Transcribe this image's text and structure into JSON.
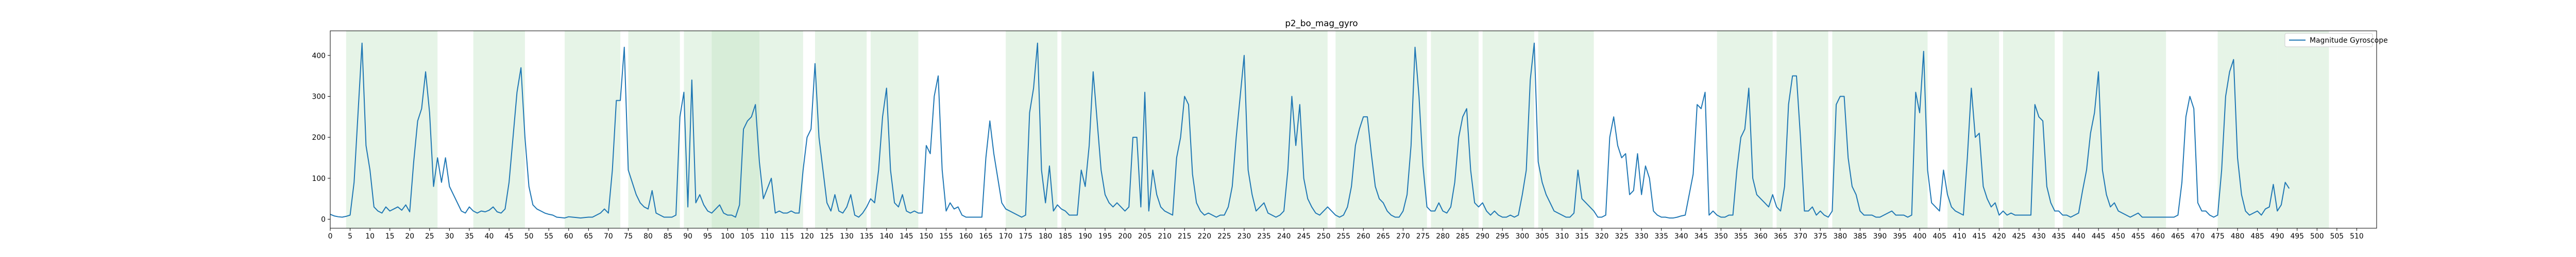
{
  "chart_data": {
    "type": "line",
    "title": "p2_bo_mag_gyro",
    "xlabel": "",
    "ylabel": "",
    "xlim": [
      0,
      515
    ],
    "ylim": [
      -22,
      460
    ],
    "x_ticks": [
      0,
      5,
      10,
      15,
      20,
      25,
      30,
      35,
      40,
      45,
      50,
      55,
      60,
      65,
      70,
      75,
      80,
      85,
      90,
      95,
      100,
      105,
      110,
      115,
      120,
      125,
      130,
      135,
      140,
      145,
      150,
      155,
      160,
      165,
      170,
      175,
      180,
      185,
      190,
      195,
      200,
      205,
      210,
      215,
      220,
      225,
      230,
      235,
      240,
      245,
      250,
      255,
      260,
      265,
      270,
      275,
      280,
      285,
      290,
      295,
      300,
      305,
      310,
      315,
      320,
      325,
      330,
      335,
      340,
      345,
      350,
      355,
      360,
      365,
      370,
      375,
      380,
      385,
      390,
      395,
      400,
      405,
      410,
      415,
      420,
      425,
      430,
      435,
      440,
      445,
      450,
      455,
      460,
      465,
      470,
      475,
      480,
      485,
      490,
      495,
      500,
      505,
      510
    ],
    "y_ticks": [
      0,
      100,
      200,
      300,
      400
    ],
    "grid": false,
    "legend_placement": "top-right",
    "series_color": "#1f77b4",
    "band_color": "#c8e6c9",
    "series": [
      {
        "name": "Magnitude Gyroscope",
        "y": [
          12,
          8,
          6,
          5,
          7,
          10,
          90,
          260,
          430,
          180,
          120,
          30,
          20,
          15,
          30,
          20,
          25,
          30,
          22,
          35,
          18,
          140,
          240,
          270,
          360,
          260,
          80,
          150,
          90,
          150,
          80,
          60,
          40,
          20,
          15,
          30,
          20,
          15,
          20,
          18,
          22,
          30,
          18,
          15,
          25,
          90,
          200,
          310,
          370,
          200,
          80,
          35,
          25,
          20,
          15,
          12,
          10,
          5,
          4,
          3,
          6,
          5,
          4,
          3,
          4,
          5,
          5,
          10,
          15,
          25,
          15,
          120,
          290,
          290,
          420,
          120,
          90,
          60,
          40,
          30,
          25,
          70,
          15,
          10,
          5,
          5,
          5,
          10,
          250,
          310,
          30,
          340,
          40,
          60,
          35,
          20,
          15,
          25,
          35,
          15,
          10,
          10,
          5,
          35,
          220,
          240,
          250,
          280,
          140,
          50,
          75,
          100,
          15,
          20,
          15,
          15,
          20,
          15,
          15,
          120,
          200,
          220,
          380,
          200,
          120,
          40,
          20,
          60,
          20,
          15,
          30,
          60,
          10,
          5,
          15,
          30,
          50,
          40,
          120,
          250,
          320,
          120,
          40,
          30,
          60,
          20,
          15,
          20,
          15,
          15,
          180,
          160,
          300,
          350,
          120,
          20,
          40,
          25,
          30,
          10,
          5,
          5,
          5,
          5,
          5,
          150,
          240,
          160,
          100,
          40,
          25,
          20,
          15,
          10,
          5,
          10,
          260,
          320,
          430,
          120,
          40,
          130,
          20,
          35,
          25,
          20,
          10,
          10,
          10,
          120,
          80,
          180,
          360,
          240,
          120,
          60,
          40,
          30,
          40,
          30,
          20,
          30,
          200,
          200,
          30,
          310,
          20,
          120,
          60,
          30,
          20,
          15,
          10,
          150,
          200,
          300,
          280,
          110,
          40,
          20,
          10,
          15,
          10,
          5,
          10,
          10,
          30,
          80,
          200,
          300,
          400,
          120,
          60,
          20,
          30,
          40,
          15,
          10,
          5,
          10,
          20,
          120,
          300,
          180,
          280,
          100,
          50,
          30,
          15,
          10,
          20,
          30,
          20,
          10,
          5,
          10,
          30,
          80,
          180,
          220,
          250,
          250,
          160,
          80,
          50,
          40,
          20,
          10,
          5,
          5,
          20,
          60,
          180,
          420,
          300,
          130,
          30,
          20,
          20,
          40,
          20,
          15,
          30,
          90,
          200,
          250,
          270,
          120,
          40,
          30,
          40,
          20,
          10,
          20,
          10,
          5,
          5,
          10,
          5,
          10,
          60,
          120,
          340,
          430,
          140,
          90,
          60,
          40,
          20,
          15,
          10,
          5,
          5,
          15,
          120,
          50,
          40,
          30,
          20,
          5,
          5,
          10,
          200,
          250,
          180,
          150,
          160,
          60,
          70,
          160,
          60,
          130,
          100,
          20,
          10,
          5,
          5,
          3,
          3,
          5,
          8,
          10,
          60,
          110,
          280,
          270,
          310,
          10,
          20,
          10,
          5,
          5,
          10,
          10,
          120,
          200,
          220,
          320,
          100,
          60,
          50,
          40,
          30,
          60,
          30,
          20,
          80,
          280,
          350,
          350,
          200,
          20,
          20,
          30,
          10,
          20,
          10,
          5,
          20,
          280,
          300,
          300,
          150,
          80,
          60,
          20,
          10,
          10,
          10,
          5,
          5,
          10,
          15,
          20,
          10,
          10,
          10,
          5,
          10,
          310,
          260,
          410,
          120,
          40,
          30,
          20,
          120,
          60,
          30,
          20,
          15,
          10,
          150,
          320,
          200,
          210,
          80,
          50,
          30,
          40,
          10,
          20,
          10,
          15,
          10,
          10,
          10,
          10,
          10,
          280,
          250,
          240,
          80,
          40,
          20,
          20,
          10,
          10,
          5,
          10,
          15,
          70,
          120,
          210,
          260,
          360,
          120,
          60,
          30,
          40,
          20,
          15,
          10,
          5,
          10,
          15,
          5,
          5,
          5,
          5,
          5,
          5,
          5,
          5,
          5,
          10,
          90,
          250,
          300,
          270,
          40,
          20,
          20,
          10,
          5,
          10,
          120,
          300,
          360,
          390,
          150,
          60,
          20,
          10,
          15,
          20,
          10,
          25,
          30,
          85,
          20,
          35,
          90,
          75
        ]
      }
    ],
    "bands": [
      [
        4,
        13
      ],
      [
        13,
        27
      ],
      [
        36,
        49
      ],
      [
        59,
        73
      ],
      [
        75,
        88
      ],
      [
        89,
        96
      ],
      [
        96,
        108
      ],
      [
        108,
        119
      ],
      [
        122,
        135
      ],
      [
        136,
        148
      ],
      [
        170,
        183
      ],
      [
        184,
        200
      ],
      [
        200,
        212
      ],
      [
        212,
        226
      ],
      [
        226,
        238
      ],
      [
        238,
        251
      ],
      [
        253,
        266
      ],
      [
        266,
        276
      ],
      [
        277,
        289
      ],
      [
        290,
        303
      ],
      [
        304,
        318
      ],
      [
        349,
        363
      ],
      [
        364,
        377
      ],
      [
        378,
        389
      ],
      [
        389,
        402
      ],
      [
        407,
        420
      ],
      [
        421,
        434
      ],
      [
        436,
        449
      ],
      [
        449,
        462
      ],
      [
        475,
        490
      ],
      [
        490,
        503
      ]
    ],
    "dark_bands": [
      [
        96,
        108
      ]
    ]
  }
}
